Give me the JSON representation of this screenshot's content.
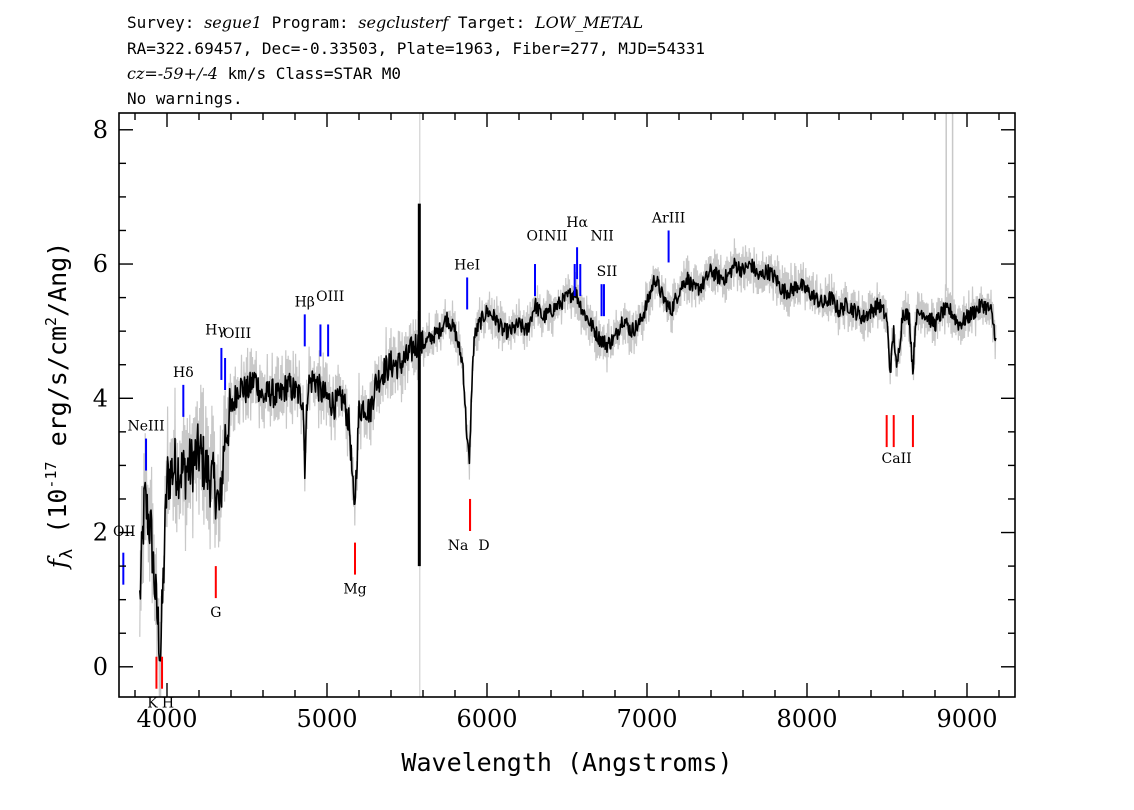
{
  "header": {
    "line1": [
      {
        "text": "Survey: ",
        "italic": false
      },
      {
        "text": "segue1",
        "italic": true
      },
      {
        "text": " Program: ",
        "italic": false
      },
      {
        "text": "segclusterf",
        "italic": true
      },
      {
        "text": " Target: ",
        "italic": false
      },
      {
        "text": "LOW_METAL",
        "italic": true
      }
    ],
    "line2": "RA=322.69457, Dec=-0.33503, Plate=1963, Fiber=277, MJD=54331",
    "line3": [
      {
        "text": "cz=-59+/-4",
        "italic": true
      },
      {
        "text": " km/s Class=STAR M0",
        "italic": false
      }
    ],
    "line4": "No warnings."
  },
  "chart_data": {
    "type": "line",
    "xlabel": "Wavelength (Angstroms)",
    "ylabel": "f_λ (10^-17 erg/s/cm^2/Ang)",
    "xlim": [
      3700,
      9300
    ],
    "ylim": [
      -0.45,
      8.25
    ],
    "x_ticks": [
      4000,
      5000,
      6000,
      7000,
      8000,
      9000
    ],
    "y_ticks": [
      0,
      2,
      4,
      6,
      8
    ],
    "colors": {
      "flux": "#000000",
      "error": "#c8c8c8",
      "emission": "#0000ff",
      "absorption": "#ff0000"
    },
    "series": [
      {
        "x": [
          3830,
          3860,
          3900,
          3930,
          3960,
          3980,
          4000,
          4050,
          4100,
          4150,
          4200,
          4250,
          4300,
          4330,
          4360,
          4400,
          4450,
          4500,
          4550,
          4600,
          4650,
          4700,
          4750,
          4800,
          4850,
          4861,
          4880,
          4920,
          4960,
          5000,
          5050,
          5100,
          5140,
          5170,
          5185,
          5200,
          5230,
          5270,
          5300,
          5350,
          5400,
          5450,
          5500,
          5550,
          5600,
          5650,
          5700,
          5750,
          5800,
          5850,
          5870,
          5890,
          5905,
          5920,
          5950,
          6000,
          6050,
          6100,
          6150,
          6200,
          6250,
          6300,
          6350,
          6400,
          6450,
          6500,
          6550,
          6600,
          6650,
          6700,
          6750,
          6800,
          6850,
          6900,
          6950,
          7000,
          7050,
          7100,
          7150,
          7200,
          7250,
          7300,
          7350,
          7400,
          7450,
          7500,
          7550,
          7600,
          7650,
          7700,
          7750,
          7800,
          7850,
          7900,
          7950,
          8000,
          8050,
          8100,
          8150,
          8200,
          8250,
          8300,
          8350,
          8400,
          8450,
          8498,
          8520,
          8542,
          8560,
          8600,
          8640,
          8662,
          8680,
          8720,
          8760,
          8800,
          8850,
          8900,
          8950,
          9000,
          9050,
          9100,
          9150,
          9180
        ],
        "values": [
          1.0,
          2.5,
          2.0,
          1.0,
          0.2,
          1.5,
          2.8,
          3.0,
          2.9,
          3.0,
          3.2,
          2.9,
          2.7,
          2.3,
          3.4,
          3.8,
          4.2,
          4.1,
          4.3,
          4.0,
          4.1,
          4.0,
          4.2,
          4.1,
          4.0,
          3.0,
          4.2,
          4.3,
          4.1,
          4.0,
          3.9,
          4.0,
          3.6,
          2.3,
          3.0,
          3.8,
          3.9,
          3.8,
          4.2,
          4.4,
          4.5,
          4.5,
          4.6,
          4.8,
          4.8,
          4.9,
          5.0,
          5.2,
          5.0,
          4.5,
          3.6,
          3.0,
          4.2,
          4.9,
          5.1,
          5.3,
          5.2,
          5.0,
          5.0,
          5.1,
          5.0,
          5.4,
          5.2,
          5.3,
          5.4,
          5.5,
          5.6,
          5.3,
          5.1,
          4.9,
          4.8,
          4.9,
          5.2,
          5.0,
          5.1,
          5.4,
          5.8,
          5.5,
          5.3,
          5.6,
          5.8,
          5.6,
          5.7,
          5.9,
          5.8,
          5.8,
          6.0,
          5.9,
          6.0,
          5.8,
          5.9,
          5.8,
          5.6,
          5.6,
          5.7,
          5.6,
          5.5,
          5.4,
          5.5,
          5.3,
          5.4,
          5.3,
          5.2,
          5.3,
          5.4,
          5.2,
          4.4,
          5.0,
          4.4,
          5.3,
          5.2,
          4.4,
          5.2,
          5.3,
          5.2,
          5.1,
          5.3,
          5.3,
          5.1,
          5.2,
          5.3,
          5.4,
          5.3,
          4.9
        ]
      }
    ],
    "sky_line": {
      "x": 5577,
      "values": [
        1.5,
        6.9
      ]
    },
    "lines": [
      {
        "label": "OII",
        "x": 3727,
        "y": 1.7,
        "kind": "emission"
      },
      {
        "label": "NeIII",
        "x": 3869,
        "y": 3.4,
        "kind": "emission"
      },
      {
        "label": "Hδ",
        "x": 4102,
        "y": 4.2,
        "kind": "emission"
      },
      {
        "label": "Hγ",
        "x": 4340,
        "y": 4.75,
        "kind": "emission"
      },
      {
        "label": "OIII",
        "x": 4363,
        "y": 4.6,
        "kind": "emission"
      },
      {
        "label": "Hβ",
        "x": 4861,
        "y": 5.25,
        "kind": "emission"
      },
      {
        "label": "OIII",
        "x": 4959,
        "y": 5.1,
        "kind": "emission"
      },
      {
        "label": "OIII",
        "x": 5007,
        "y": 5.1,
        "kind": "emission"
      },
      {
        "label": "HeI",
        "x": 5876,
        "y": 5.8,
        "kind": "emission"
      },
      {
        "label": "OI",
        "x": 6300,
        "y": 6.0,
        "kind": "emission"
      },
      {
        "label": "NII",
        "x": 6548,
        "y": 6.0,
        "kind": "emission"
      },
      {
        "label": "Hα",
        "x": 6563,
        "y": 6.25,
        "kind": "emission"
      },
      {
        "label": "NII",
        "x": 6583,
        "y": 6.0,
        "kind": "emission"
      },
      {
        "label": "SII",
        "x": 6716,
        "y": 5.7,
        "kind": "emission"
      },
      {
        "label": "SII",
        "x": 6731,
        "y": 5.7,
        "kind": "emission"
      },
      {
        "label": "ArIII",
        "x": 7135,
        "y": 6.5,
        "kind": "emission"
      },
      {
        "label": "K",
        "x": 3934,
        "y": 0.15,
        "kind": "absorption"
      },
      {
        "label": "H",
        "x": 3969,
        "y": 0.15,
        "kind": "absorption"
      },
      {
        "label": "G",
        "x": 4305,
        "y": 1.5,
        "kind": "absorption"
      },
      {
        "label": "Mg",
        "x": 5175,
        "y": 1.85,
        "kind": "absorption"
      },
      {
        "label": "Na",
        "x": 5894,
        "y": 2.5,
        "kind": "absorption"
      },
      {
        "label": "D",
        "x": 5894,
        "y": 2.5,
        "kind": "absorption"
      },
      {
        "label": "CaII",
        "x": 8498,
        "y": 3.75,
        "kind": "absorption"
      },
      {
        "label": "CaII",
        "x": 8542,
        "y": 3.75,
        "kind": "absorption"
      },
      {
        "label": "CaII",
        "x": 8662,
        "y": 3.75,
        "kind": "absorption"
      }
    ]
  }
}
